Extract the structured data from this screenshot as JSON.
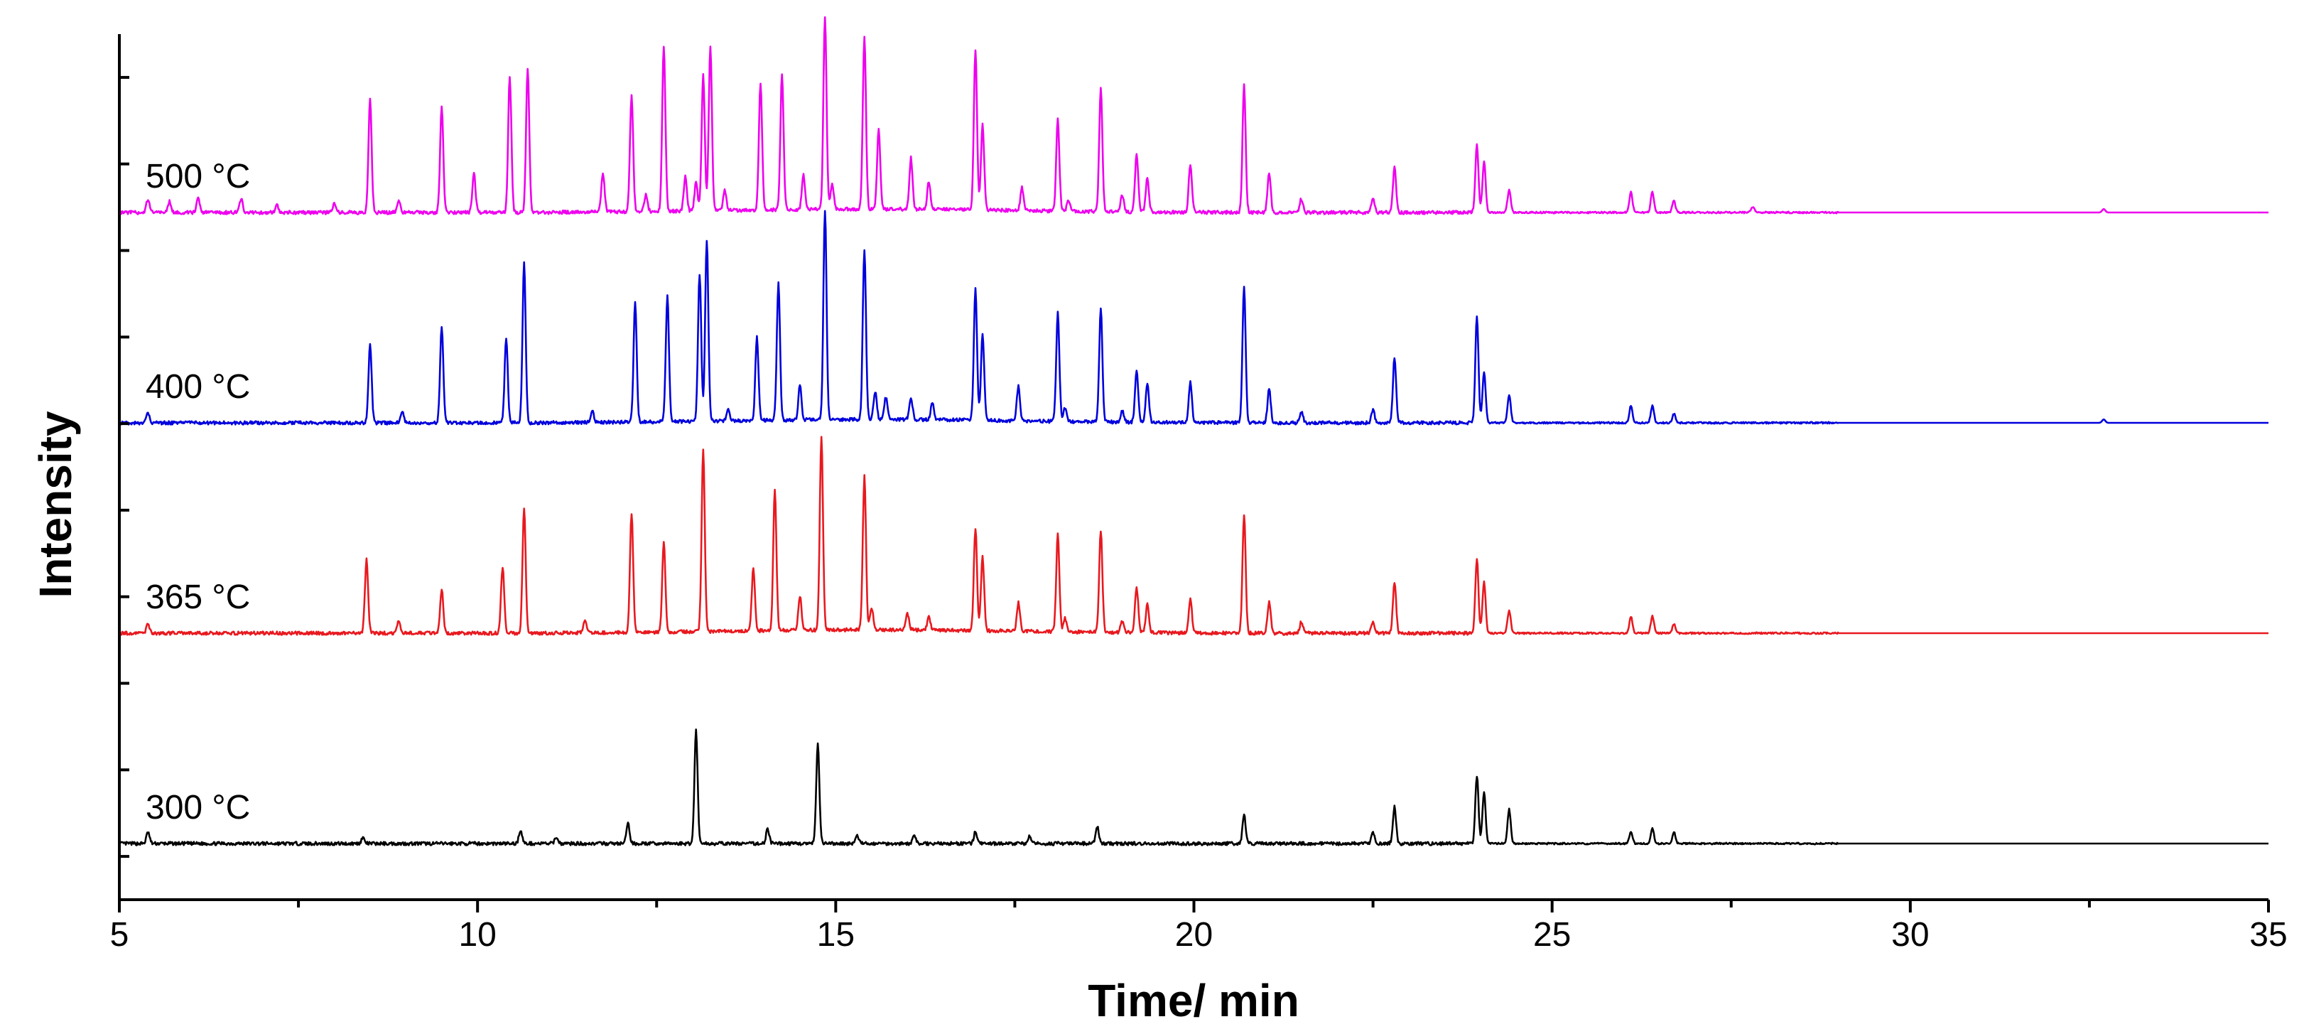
{
  "chart_data": {
    "type": "line",
    "title": "",
    "xlabel": "Time/ min",
    "ylabel": "Intensity",
    "xlim": [
      5,
      35
    ],
    "xticks": [
      5,
      10,
      15,
      20,
      25,
      30,
      35
    ],
    "x_minor_step": 2.5,
    "y_ticks_unlabeled": 10,
    "grid": false,
    "legend": "none",
    "series": [
      {
        "label": "300 °C",
        "color": "#000000",
        "baseline_rel": 0.0,
        "peaks": [
          [
            5.4,
            0.1
          ],
          [
            8.4,
            0.05
          ],
          [
            10.6,
            0.12
          ],
          [
            11.1,
            0.06
          ],
          [
            12.1,
            0.18
          ],
          [
            13.05,
            1.0
          ],
          [
            14.05,
            0.13
          ],
          [
            14.75,
            0.87
          ],
          [
            15.3,
            0.07
          ],
          [
            16.1,
            0.07
          ],
          [
            16.95,
            0.1
          ],
          [
            17.7,
            0.06
          ],
          [
            18.65,
            0.15
          ],
          [
            20.7,
            0.25
          ],
          [
            22.5,
            0.1
          ],
          [
            22.8,
            0.32
          ],
          [
            23.95,
            0.6
          ],
          [
            24.05,
            0.45
          ],
          [
            24.4,
            0.3
          ],
          [
            26.1,
            0.1
          ],
          [
            26.4,
            0.13
          ],
          [
            26.7,
            0.1
          ]
        ]
      },
      {
        "label": "365 °C",
        "color": "#e8191f",
        "baseline_rel": 1.0,
        "peaks": [
          [
            5.4,
            0.08
          ],
          [
            8.45,
            0.65
          ],
          [
            8.9,
            0.1
          ],
          [
            9.5,
            0.38
          ],
          [
            10.35,
            0.58
          ],
          [
            10.65,
            1.1
          ],
          [
            11.5,
            0.1
          ],
          [
            12.15,
            1.05
          ],
          [
            12.6,
            0.8
          ],
          [
            13.15,
            1.6
          ],
          [
            13.85,
            0.55
          ],
          [
            14.15,
            1.25
          ],
          [
            14.5,
            0.3
          ],
          [
            14.8,
            1.7
          ],
          [
            15.4,
            1.35
          ],
          [
            15.5,
            0.2
          ],
          [
            16.0,
            0.15
          ],
          [
            16.3,
            0.12
          ],
          [
            16.95,
            0.9
          ],
          [
            17.05,
            0.65
          ],
          [
            17.55,
            0.25
          ],
          [
            18.1,
            0.85
          ],
          [
            18.2,
            0.12
          ],
          [
            18.7,
            0.9
          ],
          [
            19.0,
            0.1
          ],
          [
            19.2,
            0.4
          ],
          [
            19.35,
            0.25
          ],
          [
            19.95,
            0.3
          ],
          [
            20.7,
            1.05
          ],
          [
            21.05,
            0.28
          ],
          [
            21.5,
            0.1
          ],
          [
            22.5,
            0.1
          ],
          [
            22.8,
            0.45
          ],
          [
            23.95,
            0.65
          ],
          [
            24.05,
            0.45
          ],
          [
            24.4,
            0.2
          ],
          [
            26.1,
            0.15
          ],
          [
            26.4,
            0.15
          ],
          [
            26.7,
            0.08
          ]
        ]
      },
      {
        "label": "400 °C",
        "color": "#0000dd",
        "baseline_rel": 2.0,
        "peaks": [
          [
            5.4,
            0.08
          ],
          [
            8.5,
            0.7
          ],
          [
            8.95,
            0.1
          ],
          [
            9.5,
            0.85
          ],
          [
            10.4,
            0.75
          ],
          [
            10.65,
            1.4
          ],
          [
            11.6,
            0.1
          ],
          [
            12.2,
            1.05
          ],
          [
            12.65,
            1.1
          ],
          [
            13.1,
            1.3
          ],
          [
            13.2,
            1.6
          ],
          [
            13.5,
            0.1
          ],
          [
            13.9,
            0.73
          ],
          [
            14.2,
            1.2
          ],
          [
            14.5,
            0.3
          ],
          [
            14.85,
            1.85
          ],
          [
            15.4,
            1.5
          ],
          [
            15.55,
            0.25
          ],
          [
            15.7,
            0.2
          ],
          [
            16.05,
            0.2
          ],
          [
            16.35,
            0.15
          ],
          [
            16.95,
            1.15
          ],
          [
            17.05,
            0.75
          ],
          [
            17.55,
            0.3
          ],
          [
            18.1,
            0.95
          ],
          [
            18.2,
            0.12
          ],
          [
            18.7,
            1.0
          ],
          [
            19.0,
            0.1
          ],
          [
            19.2,
            0.45
          ],
          [
            19.35,
            0.35
          ],
          [
            19.95,
            0.35
          ],
          [
            20.7,
            1.2
          ],
          [
            21.05,
            0.3
          ],
          [
            21.5,
            0.1
          ],
          [
            22.5,
            0.12
          ],
          [
            22.8,
            0.57
          ],
          [
            23.95,
            0.95
          ],
          [
            24.05,
            0.45
          ],
          [
            24.4,
            0.25
          ],
          [
            26.1,
            0.15
          ],
          [
            26.4,
            0.15
          ],
          [
            26.7,
            0.08
          ],
          [
            32.7,
            0.03
          ]
        ]
      },
      {
        "label": "500 °C",
        "color": "#ee00ee",
        "baseline_rel": 3.0,
        "peaks": [
          [
            5.4,
            0.12
          ],
          [
            5.7,
            0.1
          ],
          [
            6.1,
            0.12
          ],
          [
            6.7,
            0.12
          ],
          [
            7.2,
            0.06
          ],
          [
            8.0,
            0.08
          ],
          [
            8.5,
            1.0
          ],
          [
            8.9,
            0.1
          ],
          [
            9.5,
            0.92
          ],
          [
            9.95,
            0.35
          ],
          [
            10.45,
            1.2
          ],
          [
            10.7,
            1.25
          ],
          [
            11.75,
            0.35
          ],
          [
            12.15,
            1.02
          ],
          [
            12.35,
            0.15
          ],
          [
            12.6,
            1.45
          ],
          [
            12.9,
            0.3
          ],
          [
            13.05,
            0.25
          ],
          [
            13.15,
            1.2
          ],
          [
            13.25,
            1.45
          ],
          [
            13.45,
            0.18
          ],
          [
            13.95,
            1.12
          ],
          [
            14.25,
            1.2
          ],
          [
            14.55,
            0.3
          ],
          [
            14.85,
            1.7
          ],
          [
            14.95,
            0.22
          ],
          [
            15.4,
            1.52
          ],
          [
            15.6,
            0.7
          ],
          [
            16.05,
            0.45
          ],
          [
            16.3,
            0.25
          ],
          [
            16.95,
            1.4
          ],
          [
            17.05,
            0.75
          ],
          [
            17.6,
            0.2
          ],
          [
            18.1,
            0.8
          ],
          [
            18.25,
            0.1
          ],
          [
            18.7,
            1.08
          ],
          [
            19.0,
            0.15
          ],
          [
            19.2,
            0.5
          ],
          [
            19.35,
            0.3
          ],
          [
            19.95,
            0.42
          ],
          [
            20.7,
            1.12
          ],
          [
            21.05,
            0.35
          ],
          [
            21.5,
            0.12
          ],
          [
            22.5,
            0.12
          ],
          [
            22.8,
            0.4
          ],
          [
            23.95,
            0.6
          ],
          [
            24.05,
            0.45
          ],
          [
            24.4,
            0.2
          ],
          [
            26.1,
            0.18
          ],
          [
            26.4,
            0.18
          ],
          [
            26.7,
            0.1
          ],
          [
            27.8,
            0.05
          ],
          [
            32.7,
            0.03
          ]
        ]
      }
    ]
  }
}
